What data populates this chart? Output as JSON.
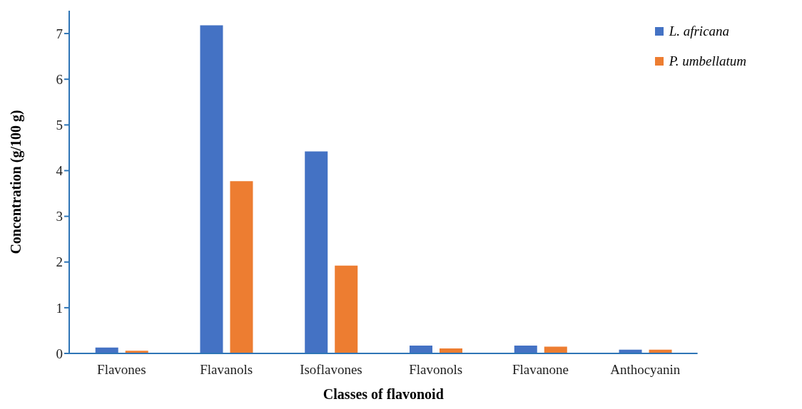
{
  "chart_data": {
    "type": "bar",
    "xlabel": "Classes of flavonoid",
    "ylabel": "Concentration (g/100 g)",
    "categories": [
      "Flavones",
      "Flavanols",
      "Isoflavones",
      "Flavonols",
      "Flavanone",
      "Anthocyanin"
    ],
    "series": [
      {
        "name": "L. africana",
        "color": "#4472c4",
        "values": [
          0.13,
          7.18,
          4.42,
          0.17,
          0.17,
          0.08
        ]
      },
      {
        "name": "P. umbellatum",
        "color": "#ed7d31",
        "values": [
          0.06,
          3.77,
          1.92,
          0.11,
          0.15,
          0.08
        ]
      }
    ],
    "ylim": [
      0,
      7.5
    ],
    "yticks": [
      0,
      1,
      2,
      3,
      4,
      5,
      6,
      7
    ],
    "grid": false,
    "legend": "top right"
  }
}
